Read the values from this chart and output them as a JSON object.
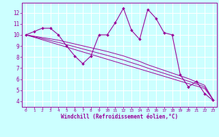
{
  "x": [
    0,
    1,
    2,
    3,
    4,
    5,
    6,
    7,
    8,
    9,
    10,
    11,
    12,
    13,
    14,
    15,
    16,
    17,
    18,
    19,
    20,
    21,
    22,
    23
  ],
  "y_main": [
    10.0,
    10.3,
    10.6,
    10.6,
    10.0,
    9.0,
    8.1,
    7.4,
    8.1,
    10.0,
    10.0,
    11.1,
    12.4,
    10.4,
    9.6,
    12.3,
    11.5,
    10.2,
    10.0,
    6.4,
    5.3,
    5.8,
    4.7,
    4.1
  ],
  "trend1": [
    10.0,
    9.78,
    9.56,
    9.34,
    9.12,
    8.9,
    8.68,
    8.46,
    8.24,
    8.02,
    7.8,
    7.58,
    7.36,
    7.14,
    6.92,
    6.7,
    6.48,
    6.26,
    6.04,
    5.82,
    5.6,
    5.38,
    5.16,
    4.2
  ],
  "trend2": [
    10.0,
    9.88,
    9.76,
    9.64,
    9.52,
    9.35,
    9.18,
    9.01,
    8.84,
    8.67,
    8.5,
    8.3,
    8.1,
    7.85,
    7.6,
    7.3,
    7.05,
    6.8,
    6.55,
    6.3,
    6.05,
    5.75,
    5.45,
    4.2
  ],
  "trend3": [
    10.0,
    9.83,
    9.66,
    9.49,
    9.32,
    9.12,
    8.93,
    8.73,
    8.54,
    8.34,
    8.15,
    7.94,
    7.73,
    7.49,
    7.26,
    7.0,
    6.76,
    6.53,
    6.29,
    6.06,
    5.82,
    5.56,
    5.3,
    4.2
  ],
  "line_color": "#990099",
  "bg_color": "#ccffff",
  "grid_color": "#aadddd",
  "xlabel": "Windchill (Refroidissement éolien,°C)",
  "xlim": [
    -0.5,
    23.5
  ],
  "ylim": [
    3.5,
    12.9
  ],
  "yticks": [
    4,
    5,
    6,
    7,
    8,
    9,
    10,
    11,
    12
  ],
  "xticks": [
    0,
    1,
    2,
    3,
    4,
    5,
    6,
    7,
    8,
    9,
    10,
    11,
    12,
    13,
    14,
    15,
    16,
    17,
    18,
    19,
    20,
    21,
    22,
    23
  ]
}
